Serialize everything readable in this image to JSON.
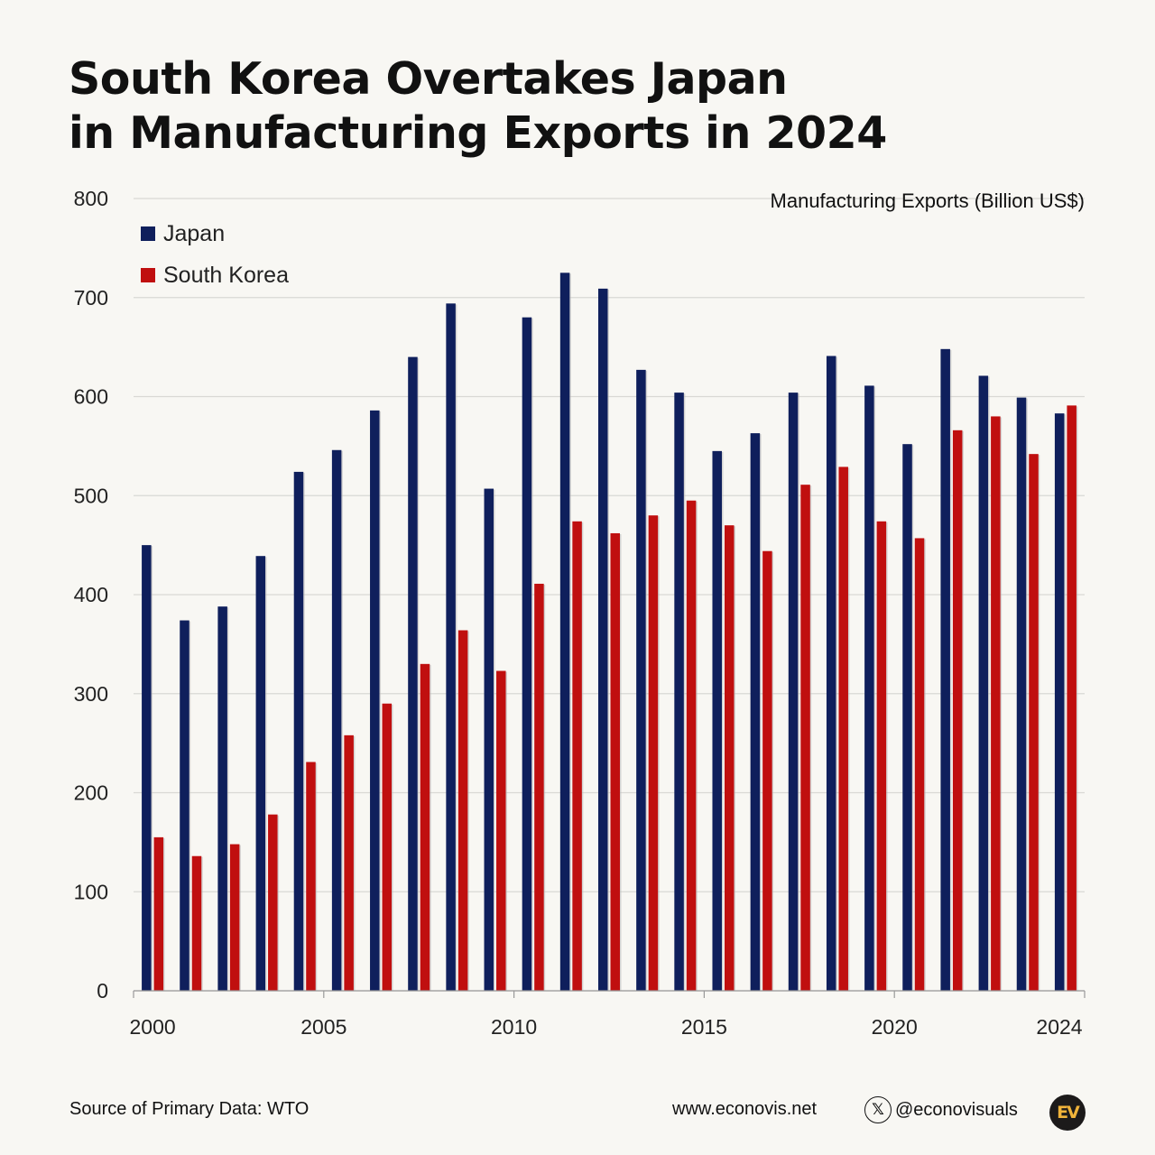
{
  "header": {
    "title_line1": "South Korea Overtakes Japan",
    "title_line2": "in Manufacturing Exports in 2024"
  },
  "chart_data": {
    "type": "bar",
    "title": "South Korea Overtakes Japan in Manufacturing Exports in 2024",
    "ylabel": "Manufacturing Exports (Billion US$)",
    "xlabel": "",
    "ylim": [
      0,
      800
    ],
    "yticks": [
      0,
      100,
      200,
      300,
      400,
      500,
      600,
      700,
      800
    ],
    "xtick_labels": [
      "2000",
      "2005",
      "2010",
      "2015",
      "2020",
      "2024"
    ],
    "categories": [
      "2000",
      "2001",
      "2002",
      "2003",
      "2004",
      "2005",
      "2006",
      "2007",
      "2008",
      "2009",
      "2010",
      "2011",
      "2012",
      "2013",
      "2014",
      "2015",
      "2016",
      "2017",
      "2018",
      "2019",
      "2020",
      "2021",
      "2022",
      "2023",
      "2024"
    ],
    "series": [
      {
        "name": "Japan",
        "color": "#0f1f5c",
        "values": [
          450,
          374,
          388,
          439,
          524,
          546,
          586,
          640,
          694,
          507,
          680,
          725,
          709,
          627,
          604,
          545,
          563,
          604,
          641,
          611,
          552,
          648,
          621,
          599,
          583
        ]
      },
      {
        "name": "South Korea",
        "color": "#c00f0f",
        "values": [
          155,
          136,
          148,
          178,
          231,
          258,
          290,
          330,
          364,
          323,
          411,
          474,
          462,
          480,
          495,
          470,
          444,
          511,
          529,
          474,
          457,
          566,
          580,
          542,
          591
        ]
      }
    ],
    "legend_position": "top-left",
    "grid": true
  },
  "footer": {
    "source": "Source of Primary Data: WTO",
    "website": "www.econovis.net",
    "social_handle": "@econovisuals",
    "x_icon": "x-logo-icon",
    "logo_text": "EV"
  }
}
